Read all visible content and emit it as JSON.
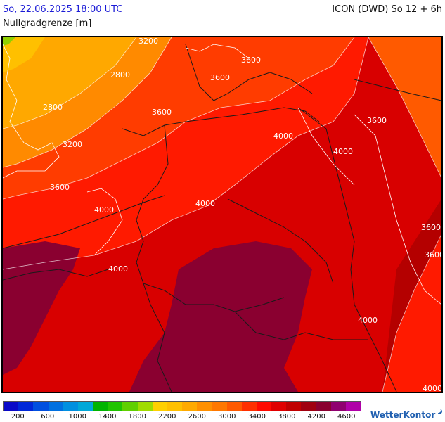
{
  "header": {
    "datetime": "So, 22.06.2025 18:00 UTC",
    "model": "ICON (DWD) So 12 + 6h",
    "parameter": "Nullgradgrenze [m]"
  },
  "map": {
    "contour_labels": [
      "3200",
      "3600",
      "2800",
      "2800",
      "3200",
      "3600",
      "3600",
      "3600",
      "3600",
      "4000",
      "4000",
      "4000",
      "4000",
      "4000",
      "3600",
      "3600",
      "4000",
      "4000"
    ],
    "colors": {
      "yellow": "#ffd500",
      "light_orange": "#ffb000",
      "orange": "#ff8a00",
      "orange_red": "#ff5a00",
      "red": "#ff1a00",
      "dark_red": "#d80000",
      "crimson": "#b40000",
      "maroon": "#8a0030"
    }
  },
  "legend": {
    "colors": [
      "#0a0ac8",
      "#0028d8",
      "#0050e0",
      "#0070e0",
      "#0090e0",
      "#00a8d8",
      "#00b400",
      "#20c400",
      "#60d000",
      "#a0dc00",
      "#ffd000",
      "#ffc000",
      "#ffaa00",
      "#ff9000",
      "#ff7800",
      "#ff5a00",
      "#ff3000",
      "#ff0a00",
      "#e00000",
      "#c00000",
      "#a00010",
      "#8a0030",
      "#900070",
      "#b000a8"
    ],
    "tick_labels": [
      "200",
      "600",
      "1000",
      "1400",
      "1800",
      "2200",
      "2600",
      "3000",
      "3400",
      "3800",
      "4200",
      "4600"
    ]
  },
  "brand": {
    "name": "WetterKontor",
    "icon": "wetterkontor-logo-icon"
  }
}
